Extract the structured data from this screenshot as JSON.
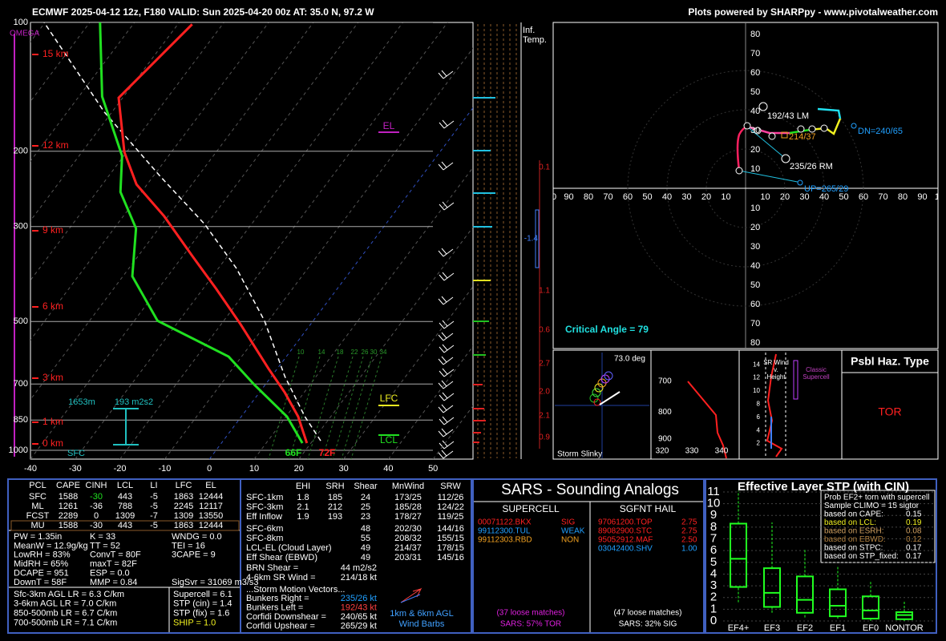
{
  "header": {
    "left": "ECMWF 2025-04-12 12z, F180  VALID: Sun 2025-04-20 00z  AT: 35.0 N, 97.2 W",
    "right": "Plots powered by SHARPpy - www.pivotalweather.com"
  },
  "skewt": {
    "pressure_ticks": [
      100,
      200,
      300,
      500,
      700,
      850,
      1000
    ],
    "temp_ticks": [
      -40,
      -30,
      -20,
      -10,
      0,
      10,
      20,
      30,
      40,
      50
    ],
    "height_labels": [
      "15 km",
      "12 km",
      "9 km",
      "6 km",
      "3 km",
      "1 km",
      "0 km"
    ],
    "omega": "OMEGA",
    "el": "EL",
    "lfc": "LFC",
    "lcl": "LCL",
    "sfc": "SFC",
    "inflow_depth": "1653m",
    "inflow_srh": "193 m2s2",
    "sfc_dewpoint": "66F",
    "sfc_temp": "72F",
    "mixing_ratio_labels": [
      10,
      14,
      18,
      22,
      26,
      30,
      34
    ],
    "temperature": {
      "color": "#ff2020",
      "p": [
        962,
        834,
        733,
        644,
        508,
        419,
        352,
        284,
        239,
        201,
        150,
        101
      ],
      "t": [
        19.1,
        12.7,
        5.7,
        -2.0,
        -15.6,
        -27.1,
        -37.8,
        -50.8,
        -62.4,
        -70.5,
        -80.9,
        -76.8
      ]
    },
    "dewpoint": {
      "color": "#20e020",
      "p": [
        962,
        834,
        704,
        604,
        498,
        392,
        303,
        249,
        205,
        149,
        100
      ],
      "t": [
        18.1,
        10.2,
        -2.3,
        -12.9,
        -34.8,
        -47.9,
        -55.1,
        -64.7,
        -70.4,
        -84.8,
        -97.7
      ]
    },
    "parcel": {
      "color": "#ffffff",
      "p": [
        950,
        834,
        672,
        498,
        376,
        296,
        229,
        162,
        100
      ],
      "t": [
        21.8,
        14.2,
        3.0,
        -10.9,
        -25.9,
        -40.5,
        -58.4,
        -81.7,
        -110.2
      ]
    }
  },
  "inferred_temp": {
    "title": [
      "Inf.",
      "Temp."
    ],
    "labels": [
      "0.1",
      "-1.4",
      "1.1",
      "0.6",
      "2.7",
      "2.0",
      "2.1",
      "0.9"
    ]
  },
  "hodograph": {
    "y_up": [
      80,
      70,
      60,
      50,
      40,
      30,
      20,
      10
    ],
    "x_left": [
      100,
      90,
      80,
      70,
      60,
      50,
      40,
      30,
      20,
      10
    ],
    "x_right": [
      10,
      20,
      30,
      40,
      50,
      60,
      70,
      80,
      90,
      100
    ],
    "y_down": [
      10,
      20,
      30,
      40,
      50,
      60,
      70,
      80
    ],
    "left_mover": "192/43 LM",
    "mean_wind": "214/37",
    "downshear": "DN=240/65",
    "right_mover": "235/26 RM",
    "upshear": "UP=265/29",
    "critical_angle": "Critical Angle = 79"
  },
  "slinky": {
    "angle": "73.0 deg",
    "title": "Storm Slinky"
  },
  "theta_e": {
    "pressure_ticks": [
      700,
      800,
      900
    ],
    "theta_ticks": [
      320,
      330,
      340
    ]
  },
  "sr_wind": {
    "height_ticks": [
      14,
      12,
      10,
      8,
      6,
      4,
      2
    ],
    "title": [
      "SR Wind",
      "v.",
      "Height"
    ],
    "note": [
      "Classic",
      "Supercell"
    ]
  },
  "hazard": {
    "title": "Psbl Haz. Type",
    "type": "TOR"
  },
  "parcels": {
    "headers": [
      "PCL",
      "CAPE",
      "CINH",
      "LCL",
      "LI",
      "LFC",
      "EL"
    ],
    "rows": [
      [
        "SFC",
        "1588",
        "-30",
        "443",
        "-5",
        "1863",
        "12444"
      ],
      [
        "ML",
        "1261",
        "-36",
        "788",
        "-5",
        "2245",
        "12117"
      ],
      [
        "FCST",
        "2289",
        "0",
        "1309",
        "-7",
        "1309",
        "13550"
      ],
      [
        "MU",
        "1588",
        "-30",
        "443",
        "-5",
        "1863",
        "12444"
      ]
    ]
  },
  "thermo": {
    "col1": [
      "PW = 1.35in",
      "MeanW = 12.9g/kg",
      "LowRH = 83%",
      "MidRH = 65%",
      "DCAPE = 951",
      "DownT = 58F"
    ],
    "col2": [
      "K = 33",
      "TT = 52",
      "ConvT = 80F",
      "maxT = 82F",
      "ESP = 0.0",
      "MMP = 0.84"
    ],
    "col3": [
      "WNDG = 0.0",
      "TEI = 16",
      "3CAPE = 9"
    ],
    "sigsvr": "SigSvr = 31069 m3/s3"
  },
  "lapse_rates": [
    "Sfc-3km AGL LR = 6.3 C/km",
    "3-6km AGL LR = 7.0 C/km",
    "850-500mb LR = 6.7 C/km",
    "700-500mb LR = 7.1 C/km"
  ],
  "composites": [
    "Supercell = 6.1",
    "STP (cin) = 1.4",
    "STP (fix) = 1.6",
    "SHIP = 1.0"
  ],
  "kinematics": {
    "headers": [
      "EHI",
      "SRH",
      "Shear",
      "MnWind",
      "SRW"
    ],
    "rows_top": [
      [
        "SFC-1km",
        "1.8",
        "185",
        "24",
        "173/25",
        "112/26"
      ],
      [
        "SFC-3km",
        "2.1",
        "212",
        "25",
        "185/28",
        "124/22"
      ],
      [
        "Eff Inflow",
        "1.9",
        "193",
        "23",
        "178/27",
        "119/25"
      ]
    ],
    "rows_mid": [
      [
        "SFC-6km",
        "48",
        "202/30",
        "144/16"
      ],
      [
        "SFC-8km",
        "55",
        "208/32",
        "155/15"
      ],
      [
        "LCL-EL (Cloud Layer)",
        "49",
        "214/37",
        "178/15"
      ],
      [
        "Eff Shear (EBWD)",
        "49",
        "203/31",
        "145/16"
      ]
    ],
    "extra": [
      [
        "BRN Shear =",
        "44 m2/s2"
      ],
      [
        "4-6km SR Wind =",
        "214/18 kt"
      ]
    ],
    "motion_title": "...Storm Motion Vectors...",
    "motion": [
      [
        "Bunkers Right =",
        "235/26 kt"
      ],
      [
        "Bunkers Left =",
        "192/43 kt"
      ],
      [
        "Corfidi Downshear =",
        "240/65 kt"
      ],
      [
        "Corfidi Upshear =",
        "265/29 kt"
      ]
    ],
    "barb_caption": [
      "1km & 6km AGL",
      "Wind Barbs"
    ]
  },
  "sars": {
    "title": "SARS - Sounding Analogs",
    "supercell_title": "SUPERCELL",
    "hail_title": "SGFNT HAIL",
    "supercell": [
      [
        "00071122.BKX",
        "SIG"
      ],
      [
        "99112300.TUL",
        "WEAK"
      ],
      [
        "99112303.RBD",
        "NON"
      ]
    ],
    "hail": [
      [
        "97061200.TOP",
        "2.75"
      ],
      [
        "89082900.STC",
        "2.75"
      ],
      [
        "95052912.MAF",
        "2.50"
      ],
      [
        "03042400.SHV",
        "1.00"
      ]
    ],
    "supercell_footer": [
      "(37 loose matches)",
      "SARS: 57% TOR"
    ],
    "hail_footer": [
      "(47 loose matches)",
      "SARS: 32% SIG"
    ]
  },
  "stp": {
    "title": "Effective Layer STP (with CIN)",
    "yticks": [
      0,
      1,
      2,
      3,
      4,
      5,
      6,
      7,
      8,
      9,
      10,
      11
    ],
    "ylim": [
      0,
      11
    ],
    "color": "#20ff20",
    "boxes": [
      {
        "name": "EF4+",
        "values": [
          1.6,
          2.9,
          5.3,
          8.3,
          11.1
        ]
      },
      {
        "name": "EF3",
        "values": [
          0.7,
          1.2,
          2.4,
          4.5,
          8.4
        ]
      },
      {
        "name": "EF2",
        "values": [
          0.3,
          0.7,
          1.8,
          3.8,
          6.1
        ]
      },
      {
        "name": "EF1",
        "values": [
          0.2,
          0.4,
          1.3,
          2.7,
          4.6
        ]
      },
      {
        "name": "EF0",
        "values": [
          0.0,
          0.2,
          0.9,
          2.1,
          3.4
        ]
      },
      {
        "name": "NONTOR",
        "values": [
          0.0,
          0.15,
          0.5,
          0.75,
          1.7
        ]
      }
    ],
    "legend": [
      "Prob EF2+ torn with supercell",
      "Sample CLIMO = 15 sigtor"
    ],
    "probs": [
      [
        "based on CAPE:",
        "0.15"
      ],
      [
        "based on LCL:",
        "0.19"
      ],
      [
        "based on ESRH:",
        "0.08"
      ],
      [
        "based on EBWD:",
        "0.12"
      ],
      [
        "based on STPC:",
        "0.17"
      ],
      [
        "based on STP_fixed:",
        "0.17"
      ]
    ]
  }
}
